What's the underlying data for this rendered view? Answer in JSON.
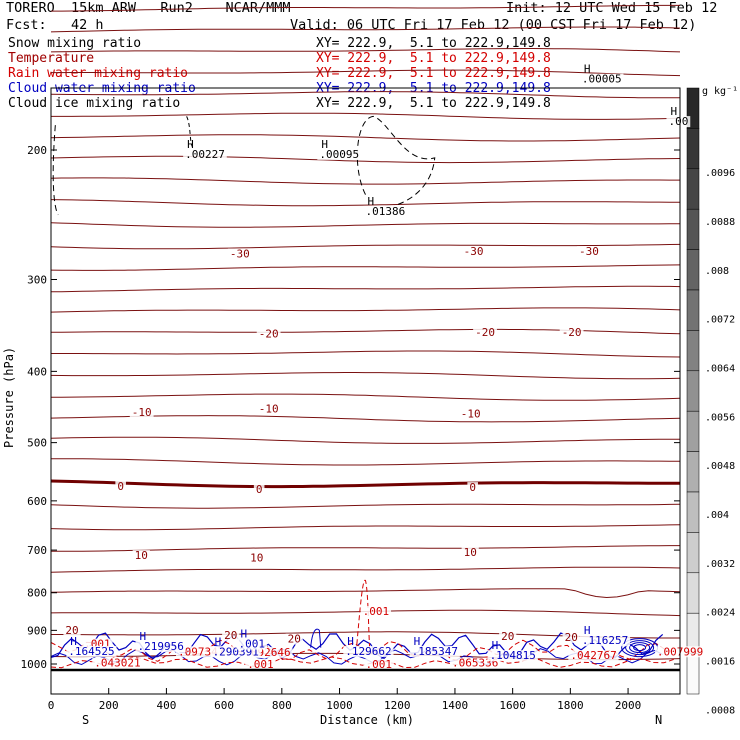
{
  "header": {
    "model": "TORERO  15km ARW   Run2    NCAR/MMM",
    "init": "Init: 12 UTC Wed 15 Feb 12",
    "fcst": "Fcst:   42 h",
    "valid": "Valid: 06 UTC Fri 17 Feb 12 (00 CST Fri 17 Feb 12)"
  },
  "legend": [
    {
      "label": "Snow mixing ratio",
      "xy": "XY= 222.9,  5.1 to 222.9,149.8",
      "color": "#000000",
      "xycolor": "#000000"
    },
    {
      "label": "Temperature",
      "xy": "XY= 222.9,  5.1 to 222.9,149.8",
      "color": "#a00000",
      "xycolor": "#d40000"
    },
    {
      "label": "Rain water mixing ratio",
      "xy": "XY= 222.9,  5.1 to 222.9,149.8",
      "color": "#d40000",
      "xycolor": "#d40000"
    },
    {
      "label": "Cloud water mixing ratio",
      "xy": "XY= 222.9,  5.1 to 222.9,149.8",
      "color": "#0000c0",
      "xycolor": "#0000c0"
    },
    {
      "label": "Cloud ice mixing ratio",
      "xy": "XY= 222.9,  5.1 to 222.9,149.8",
      "color": "#000000",
      "xycolor": "#000000"
    }
  ],
  "chart_data": {
    "type": "contour",
    "xlabel": "Distance (km)",
    "ylabel": "Pressure (hPa)",
    "x_ticks": [
      "0",
      "200",
      "400",
      "600",
      "800",
      "1000",
      "1200",
      "1400",
      "1600",
      "1800",
      "2000"
    ],
    "y_ticks": [
      "200",
      "300",
      "400",
      "500",
      "600",
      "700",
      "800",
      "900",
      "1000"
    ],
    "x_range": [
      0,
      2180
    ],
    "y_range_hPa": [
      100,
      1050
    ],
    "y_scale": "log",
    "x_end_labels": {
      "left": "S",
      "right": "N"
    },
    "colorbar": {
      "unit": "g kg⁻¹",
      "labels": [
        ".0096",
        ".0088",
        ".008",
        ".0072",
        ".0064",
        ".0056",
        ".0048",
        ".004",
        ".0032",
        ".0024",
        ".0016",
        ".0008"
      ]
    },
    "temperature_labels": [
      {
        "text": "-30",
        "x": 620,
        "p": 280
      },
      {
        "text": "-30",
        "x": 1430,
        "p": 278
      },
      {
        "text": "-30",
        "x": 1830,
        "p": 278
      },
      {
        "text": "-20",
        "x": 720,
        "p": 360
      },
      {
        "text": "-20",
        "x": 1470,
        "p": 358
      },
      {
        "text": "-20",
        "x": 1770,
        "p": 358
      },
      {
        "text": "-10",
        "x": 280,
        "p": 460
      },
      {
        "text": "-10",
        "x": 720,
        "p": 455
      },
      {
        "text": "-10",
        "x": 1420,
        "p": 462
      },
      {
        "text": "0",
        "x": 230,
        "p": 580
      },
      {
        "text": "0",
        "x": 710,
        "p": 585
      },
      {
        "text": "0",
        "x": 1450,
        "p": 582
      },
      {
        "text": "10",
        "x": 290,
        "p": 720
      },
      {
        "text": "10",
        "x": 690,
        "p": 725
      },
      {
        "text": "10",
        "x": 1430,
        "p": 713
      },
      {
        "text": "20",
        "x": 50,
        "p": 910
      },
      {
        "text": "20",
        "x": 600,
        "p": 925
      },
      {
        "text": "20",
        "x": 820,
        "p": 935
      },
      {
        "text": "20",
        "x": 1560,
        "p": 928
      },
      {
        "text": "20",
        "x": 1780,
        "p": 930
      }
    ],
    "snow_max_labels": [
      {
        "text": ".00227",
        "x": 465,
        "p": 205
      },
      {
        "text": ".00095",
        "x": 930,
        "p": 205
      },
      {
        "text": ".01386",
        "x": 1090,
        "p": 245
      },
      {
        "text": ".00005",
        "x": 1840,
        "p": 162
      },
      {
        "text": ".00",
        "x": 2140,
        "p": 185
      }
    ],
    "rain_labels": [
      {
        "text": ".001",
        "x": 1080,
        "p": 858
      },
      {
        "text": ".001",
        "x": 115,
        "p": 950
      },
      {
        "text": ".097347",
        "x": 440,
        "p": 973
      },
      {
        "text": ".092646",
        "x": 670,
        "p": 975
      },
      {
        "text": ".043021",
        "x": 150,
        "p": 1008
      },
      {
        "text": ".001",
        "x": 680,
        "p": 1012
      },
      {
        "text": ".001",
        "x": 1090,
        "p": 1012
      },
      {
        "text": ".065336",
        "x": 1390,
        "p": 1008
      },
      {
        "text": ".042767",
        "x": 1800,
        "p": 985
      },
      {
        "text": ".007999",
        "x": 2100,
        "p": 973
      }
    ],
    "cloud_labels": [
      {
        "text": ".164525",
        "x": 60,
        "p": 972
      },
      {
        "text": ".219956",
        "x": 300,
        "p": 957
      },
      {
        "text": ".290391",
        "x": 560,
        "p": 973
      },
      {
        "text": ".001",
        "x": 650,
        "p": 950
      },
      {
        "text": ".129662",
        "x": 1020,
        "p": 972
      },
      {
        "text": ".185347",
        "x": 1250,
        "p": 972
      },
      {
        "text": ".104815",
        "x": 1520,
        "p": 985
      },
      {
        "text": ".116257",
        "x": 1840,
        "p": 940
      }
    ]
  }
}
